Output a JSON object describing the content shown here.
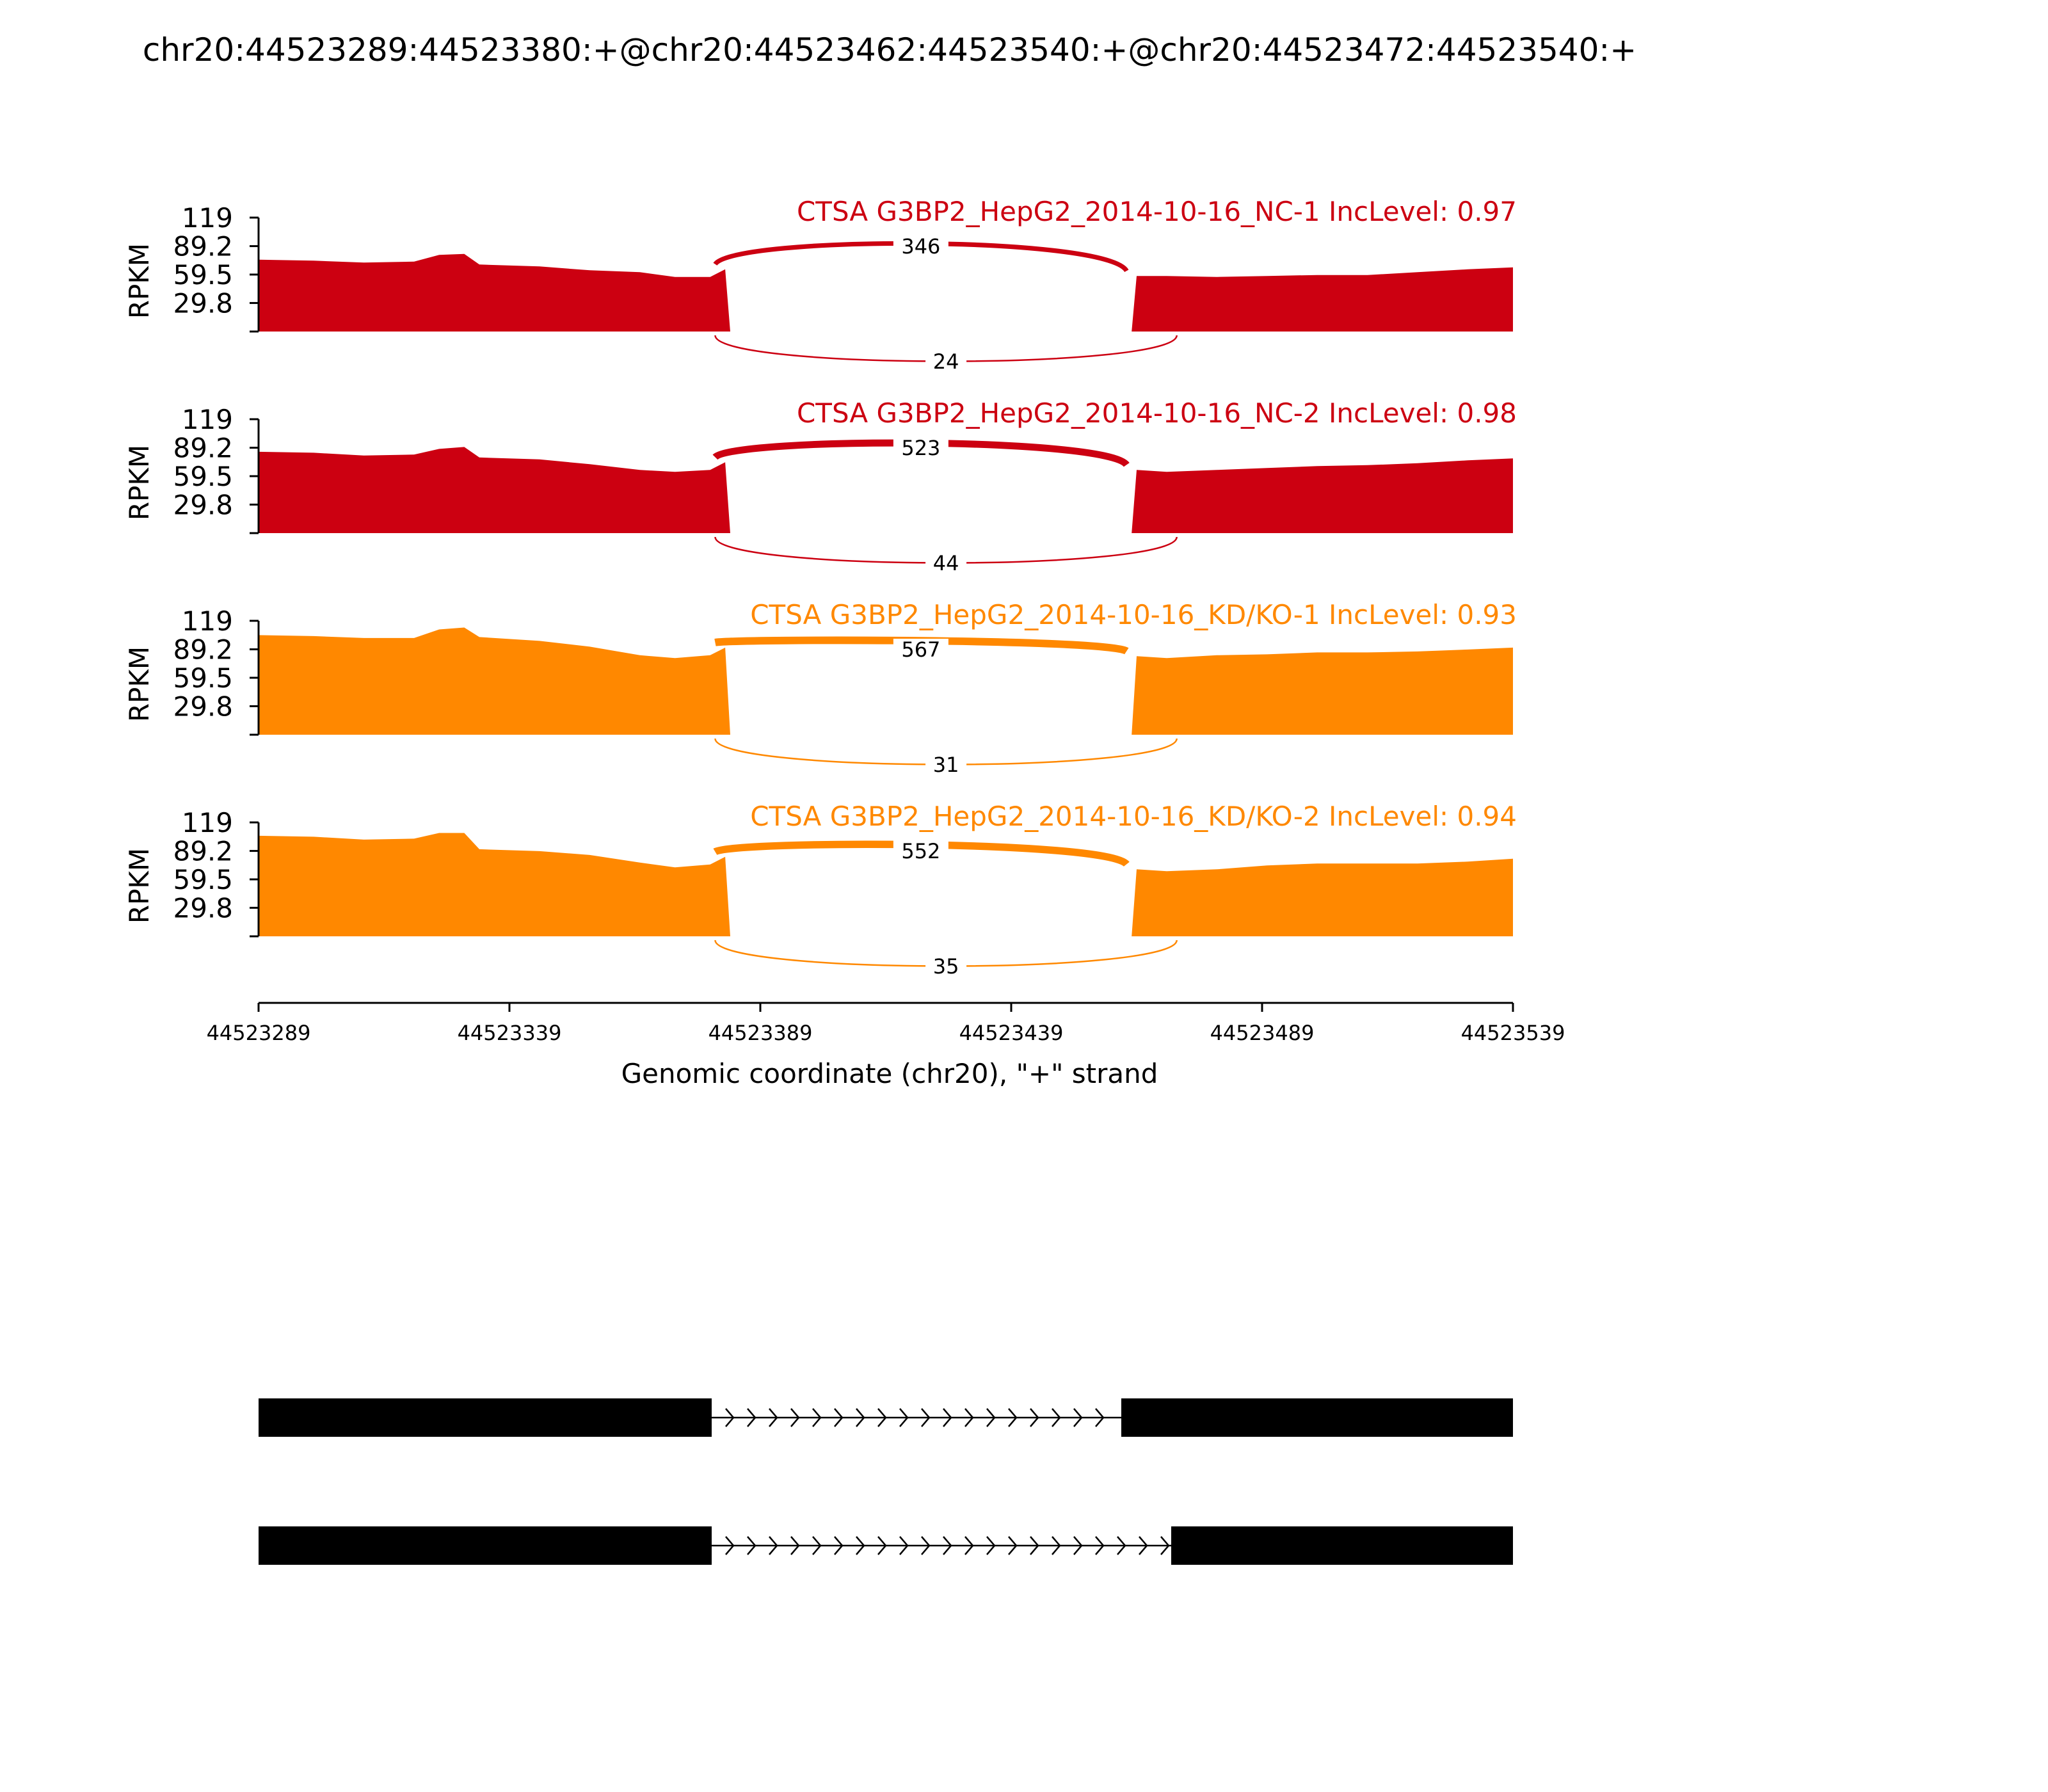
{
  "title": "chr20:44523289:44523380:+@chr20:44523462:44523540:+@chr20:44523472:44523540:+",
  "chart_data": {
    "type": "area",
    "x_range": [
      44523289,
      44523539
    ],
    "xlabel": "Genomic coordinate (chr20), \"+\" strand",
    "x_ticks": [
      44523289,
      44523339,
      44523389,
      44523439,
      44523489,
      44523539
    ],
    "x_tick_labels": [
      "44523289",
      "44523339",
      "44523389",
      "44523439",
      "44523489",
      "44523539"
    ],
    "ylabel": "RPKM",
    "y_range": [
      0,
      119
    ],
    "y_ticks": [
      29.8,
      59.5,
      89.2,
      119
    ],
    "y_tick_labels": [
      "29.8",
      "59.5",
      "89.2",
      "119"
    ],
    "exon1": [
      44523289,
      44523380
    ],
    "exon2_long": [
      44523462,
      44523539
    ],
    "exon2_short": [
      44523472,
      44523539
    ],
    "samples": [
      {
        "label": "CTSA G3BP2_HepG2_2014-10-16_NC-1 IncLevel: 0.97",
        "color": "#cc0011",
        "coverage": [
          [
            44523289,
            75
          ],
          [
            44523300,
            74
          ],
          [
            44523310,
            72
          ],
          [
            44523320,
            73
          ],
          [
            44523325,
            80
          ],
          [
            44523330,
            81
          ],
          [
            44523333,
            70
          ],
          [
            44523345,
            68
          ],
          [
            44523355,
            64
          ],
          [
            44523365,
            62
          ],
          [
            44523372,
            57
          ],
          [
            44523379,
            57
          ],
          [
            44523382,
            65
          ],
          [
            44523383,
            0
          ],
          [
            44523463,
            0
          ],
          [
            44523464,
            58
          ],
          [
            44523470,
            58
          ],
          [
            44523480,
            57
          ],
          [
            44523490,
            58
          ],
          [
            44523500,
            59
          ],
          [
            44523510,
            59
          ],
          [
            44523520,
            62
          ],
          [
            44523530,
            65
          ],
          [
            44523539,
            67
          ]
        ],
        "junctions": [
          {
            "start": 44523380,
            "end": 44523462,
            "count": "346",
            "position": "above"
          },
          {
            "start": 44523380,
            "end": 44523472,
            "count": "24",
            "position": "below"
          }
        ]
      },
      {
        "label": "CTSA G3BP2_HepG2_2014-10-16_NC-2 IncLevel: 0.98",
        "color": "#cc0011",
        "coverage": [
          [
            44523289,
            85
          ],
          [
            44523300,
            84
          ],
          [
            44523310,
            81
          ],
          [
            44523320,
            82
          ],
          [
            44523325,
            88
          ],
          [
            44523330,
            90
          ],
          [
            44523333,
            79
          ],
          [
            44523345,
            77
          ],
          [
            44523355,
            72
          ],
          [
            44523365,
            66
          ],
          [
            44523372,
            64
          ],
          [
            44523379,
            66
          ],
          [
            44523382,
            74
          ],
          [
            44523383,
            0
          ],
          [
            44523463,
            0
          ],
          [
            44523464,
            66
          ],
          [
            44523470,
            64
          ],
          [
            44523480,
            66
          ],
          [
            44523490,
            68
          ],
          [
            44523500,
            70
          ],
          [
            44523510,
            71
          ],
          [
            44523520,
            73
          ],
          [
            44523530,
            76
          ],
          [
            44523539,
            78
          ]
        ],
        "junctions": [
          {
            "start": 44523380,
            "end": 44523462,
            "count": "523",
            "position": "above"
          },
          {
            "start": 44523380,
            "end": 44523472,
            "count": "44",
            "position": "below"
          }
        ]
      },
      {
        "label": "CTSA G3BP2_HepG2_2014-10-16_KD/KO-1 IncLevel: 0.93",
        "color": "#ff8800",
        "coverage": [
          [
            44523289,
            104
          ],
          [
            44523300,
            103
          ],
          [
            44523310,
            101
          ],
          [
            44523320,
            101
          ],
          [
            44523325,
            110
          ],
          [
            44523330,
            112
          ],
          [
            44523333,
            102
          ],
          [
            44523345,
            98
          ],
          [
            44523355,
            92
          ],
          [
            44523365,
            83
          ],
          [
            44523372,
            80
          ],
          [
            44523379,
            83
          ],
          [
            44523382,
            91
          ],
          [
            44523383,
            0
          ],
          [
            44523463,
            0
          ],
          [
            44523464,
            82
          ],
          [
            44523470,
            80
          ],
          [
            44523480,
            83
          ],
          [
            44523490,
            84
          ],
          [
            44523500,
            86
          ],
          [
            44523510,
            86
          ],
          [
            44523520,
            87
          ],
          [
            44523530,
            89
          ],
          [
            44523539,
            91
          ]
        ],
        "junctions": [
          {
            "start": 44523380,
            "end": 44523462,
            "count": "567",
            "position": "above"
          },
          {
            "start": 44523380,
            "end": 44523472,
            "count": "31",
            "position": "below"
          }
        ]
      },
      {
        "label": "CTSA G3BP2_HepG2_2014-10-16_KD/KO-2 IncLevel: 0.94",
        "color": "#ff8800",
        "coverage": [
          [
            44523289,
            105
          ],
          [
            44523300,
            104
          ],
          [
            44523310,
            101
          ],
          [
            44523320,
            102
          ],
          [
            44523325,
            108
          ],
          [
            44523330,
            108
          ],
          [
            44523333,
            91
          ],
          [
            44523345,
            89
          ],
          [
            44523355,
            85
          ],
          [
            44523365,
            77
          ],
          [
            44523372,
            72
          ],
          [
            44523379,
            75
          ],
          [
            44523382,
            83
          ],
          [
            44523383,
            0
          ],
          [
            44523463,
            0
          ],
          [
            44523464,
            70
          ],
          [
            44523470,
            68
          ],
          [
            44523480,
            70
          ],
          [
            44523490,
            74
          ],
          [
            44523500,
            76
          ],
          [
            44523510,
            76
          ],
          [
            44523520,
            76
          ],
          [
            44523530,
            78
          ],
          [
            44523539,
            81
          ]
        ],
        "junctions": [
          {
            "start": 44523380,
            "end": 44523462,
            "count": "552",
            "position": "above"
          },
          {
            "start": 44523380,
            "end": 44523472,
            "count": "35",
            "position": "below"
          }
        ]
      }
    ]
  }
}
